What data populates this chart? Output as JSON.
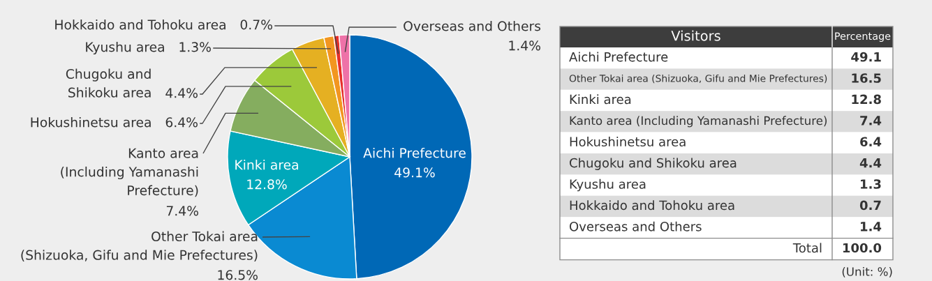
{
  "chart_data": [
    {
      "type": "pie",
      "categories": [
        "Aichi Prefecture",
        "Other Tokai area\n(Shizuoka, Gifu and Mie Prefectures)",
        "Kinki area",
        "Kanto area\n(Including Yamanashi\nPrefecture)",
        "Hokushinetsu area",
        "Chugoku and\nShikoku area",
        "Kyushu area",
        "Hokkaido and Tohoku area",
        "Overseas and Others"
      ],
      "values": [
        49.1,
        16.5,
        12.8,
        7.4,
        6.4,
        4.4,
        1.3,
        0.7,
        1.4
      ],
      "colors": [
        "#0068b6",
        "#0a8ad2",
        "#00a8ba",
        "#85ad5f",
        "#9cc93a",
        "#e5b022",
        "#f29620",
        "#e6302b",
        "#ee72a8"
      ],
      "value_labels": [
        "49.1%",
        "16.5%",
        "12.8%",
        "7.4%",
        "6.4%",
        "4.4%",
        "1.3%",
        "0.7%",
        "1.4%"
      ]
    },
    {
      "type": "other",
      "categories": [
        "Aichi Prefecture",
        "Other Tokai area (Shizuoka, Gifu and Mie Prefectures)",
        "Kinki area",
        "Kanto area (Including Yamanashi Prefecture)",
        "Hokushinetsu area",
        "Chugoku and Shikoku area",
        "Kyushu area",
        "Hokkaido and Tohoku area",
        "Overseas and Others"
      ],
      "values": [
        49.1,
        16.5,
        12.8,
        7.4,
        6.4,
        4.4,
        1.3,
        0.7,
        1.4
      ],
      "data_labels": true,
      "totals": [
        "100.0"
      ],
      "annotations": [
        "Visitors",
        "Percentage",
        "Total",
        "(Unit: %)"
      ]
    }
  ]
}
